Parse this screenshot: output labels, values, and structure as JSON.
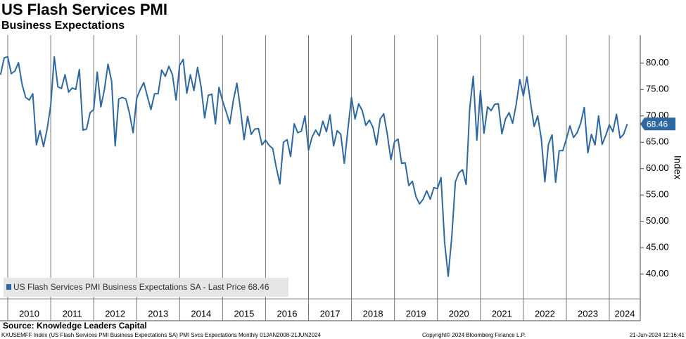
{
  "chart_data": {
    "type": "line",
    "title": "US Flash Services PMI",
    "subtitle": "Business Expectations",
    "y_axis_label": "Index",
    "source": "Source: Knowledge Leaders Capital",
    "footer_left": "KXUSEMFF Index (US Flash Services PMI Business Expectations SA) PMI Svcs Expectations  Monthly 01JAN2008-21JUN2024",
    "footer_center": "Copyright© 2024 Bloomberg Finance L.P.",
    "footer_right": "21-Jun-2024 12:16:41",
    "xlim": [
      2009.82,
      2024.72
    ],
    "xticks": [
      2010,
      2011,
      2012,
      2013,
      2014,
      2015,
      2016,
      2017,
      2018,
      2019,
      2020,
      2021,
      2022,
      2023,
      2024
    ],
    "ylim": [
      35.3,
      85.3
    ],
    "yticks": [
      {
        "value": 40,
        "label": "40.00"
      },
      {
        "value": 45,
        "label": "45.00"
      },
      {
        "value": 50,
        "label": "50.00"
      },
      {
        "value": 55,
        "label": "55.00"
      },
      {
        "value": 60,
        "label": "60.00"
      },
      {
        "value": 65,
        "label": "65.00"
      },
      {
        "value": 70,
        "label": "70.00"
      },
      {
        "value": 75,
        "label": "75.00"
      },
      {
        "value": 80,
        "label": "80.00"
      }
    ],
    "grid": true,
    "legend": "bottom-left",
    "x": [
      2009.833,
      2009.917,
      2010.0,
      2010.083,
      2010.167,
      2010.25,
      2010.333,
      2010.417,
      2010.5,
      2010.583,
      2010.667,
      2010.75,
      2010.833,
      2010.917,
      2011.0,
      2011.083,
      2011.167,
      2011.25,
      2011.333,
      2011.417,
      2011.5,
      2011.583,
      2011.667,
      2011.75,
      2011.833,
      2011.917,
      2012.0,
      2012.083,
      2012.167,
      2012.25,
      2012.333,
      2012.417,
      2012.5,
      2012.583,
      2012.667,
      2012.75,
      2012.833,
      2012.917,
      2013.0,
      2013.083,
      2013.167,
      2013.25,
      2013.333,
      2013.417,
      2013.5,
      2013.583,
      2013.667,
      2013.75,
      2013.833,
      2013.917,
      2014.0,
      2014.083,
      2014.167,
      2014.25,
      2014.333,
      2014.417,
      2014.5,
      2014.583,
      2014.667,
      2014.75,
      2014.833,
      2014.917,
      2015.0,
      2015.083,
      2015.167,
      2015.25,
      2015.333,
      2015.417,
      2015.5,
      2015.583,
      2015.667,
      2015.75,
      2015.833,
      2015.917,
      2016.0,
      2016.083,
      2016.167,
      2016.25,
      2016.333,
      2016.417,
      2016.5,
      2016.583,
      2016.667,
      2016.75,
      2016.833,
      2016.917,
      2017.0,
      2017.083,
      2017.167,
      2017.25,
      2017.333,
      2017.417,
      2017.5,
      2017.583,
      2017.667,
      2017.75,
      2017.833,
      2017.917,
      2018.0,
      2018.083,
      2018.167,
      2018.25,
      2018.333,
      2018.417,
      2018.5,
      2018.583,
      2018.667,
      2018.75,
      2018.833,
      2018.917,
      2019.0,
      2019.083,
      2019.167,
      2019.25,
      2019.333,
      2019.417,
      2019.5,
      2019.583,
      2019.667,
      2019.75,
      2019.833,
      2019.917,
      2020.0,
      2020.083,
      2020.167,
      2020.25,
      2020.333,
      2020.417,
      2020.5,
      2020.583,
      2020.667,
      2020.75,
      2020.833,
      2020.917,
      2021.0,
      2021.083,
      2021.167,
      2021.25,
      2021.333,
      2021.417,
      2021.5,
      2021.583,
      2021.667,
      2021.75,
      2021.833,
      2021.917,
      2022.0,
      2022.083,
      2022.167,
      2022.25,
      2022.333,
      2022.417,
      2022.5,
      2022.583,
      2022.667,
      2022.75,
      2022.833,
      2022.917,
      2023.0,
      2023.083,
      2023.167,
      2023.25,
      2023.333,
      2023.417,
      2023.5,
      2023.583,
      2023.667,
      2023.75,
      2023.833,
      2023.917,
      2024.0,
      2024.083,
      2024.167,
      2024.25,
      2024.333,
      2024.417
    ],
    "series": [
      {
        "name": "US Flash Services PMI Business Expectations SA - Last Price 68.46",
        "color": "#2e68a0",
        "values": [
          77.8,
          81,
          81.2,
          78,
          78.5,
          80.1,
          76,
          73.5,
          73,
          74.2,
          64.5,
          67.2,
          64.2,
          67.5,
          72,
          81.2,
          75.5,
          75.2,
          77.8,
          74.5,
          75.3,
          75,
          78.8,
          67.3,
          67.5,
          70.6,
          71.2,
          78.3,
          71.7,
          75,
          79.8,
          76.6,
          64.3,
          73.2,
          73.5,
          73.2,
          70.5,
          66.8,
          73.3,
          75,
          76.3,
          73.7,
          71.2,
          74.2,
          74.2,
          78.7,
          77.5,
          79.4,
          77.8,
          73,
          79.6,
          80.7,
          74.3,
          77.8,
          74.8,
          79.2,
          75.5,
          69.6,
          73.9,
          74.1,
          68.5,
          75.4,
          72.8,
          70.8,
          68.5,
          72.9,
          76.2,
          71.2,
          65.5,
          69.9,
          66.5,
          67.5,
          67.6,
          64.5,
          65.4,
          64.4,
          63.8,
          60.2,
          57.1,
          65,
          65.5,
          62.3,
          68.5,
          66.8,
          67.1,
          70,
          63.5,
          66,
          67.3,
          66.2,
          69,
          67,
          70.2,
          64.3,
          67.2,
          66.5,
          61,
          67.5,
          73.5,
          69.4,
          72.3,
          71,
          68.2,
          69.2,
          67.8,
          64.5,
          69.4,
          70.4,
          66.5,
          61.7,
          65.1,
          65.6,
          61,
          61.1,
          56.8,
          57.6,
          54.7,
          53.3,
          54.2,
          55.8,
          54.2,
          56.4,
          56.2,
          58.3,
          46,
          39.6,
          47,
          57.5,
          59.2,
          59.8,
          57,
          71.3,
          77.5,
          65.4,
          74.8,
          66.7,
          71.7,
          71,
          72.2,
          72.3,
          66.6,
          69.4,
          70.6,
          68.6,
          72.2,
          76.9,
          73.8,
          77.4,
          72.5,
          68,
          70,
          65.7,
          57.5,
          64.6,
          66.4,
          57.4,
          63.4,
          63.4,
          65.6,
          68.1,
          65.9,
          66.8,
          68.6,
          71.6,
          63,
          66.5,
          64.5,
          70,
          64.6,
          66.3,
          68.3,
          67,
          70.3,
          65.8,
          66.5,
          68.46
        ]
      }
    ]
  }
}
